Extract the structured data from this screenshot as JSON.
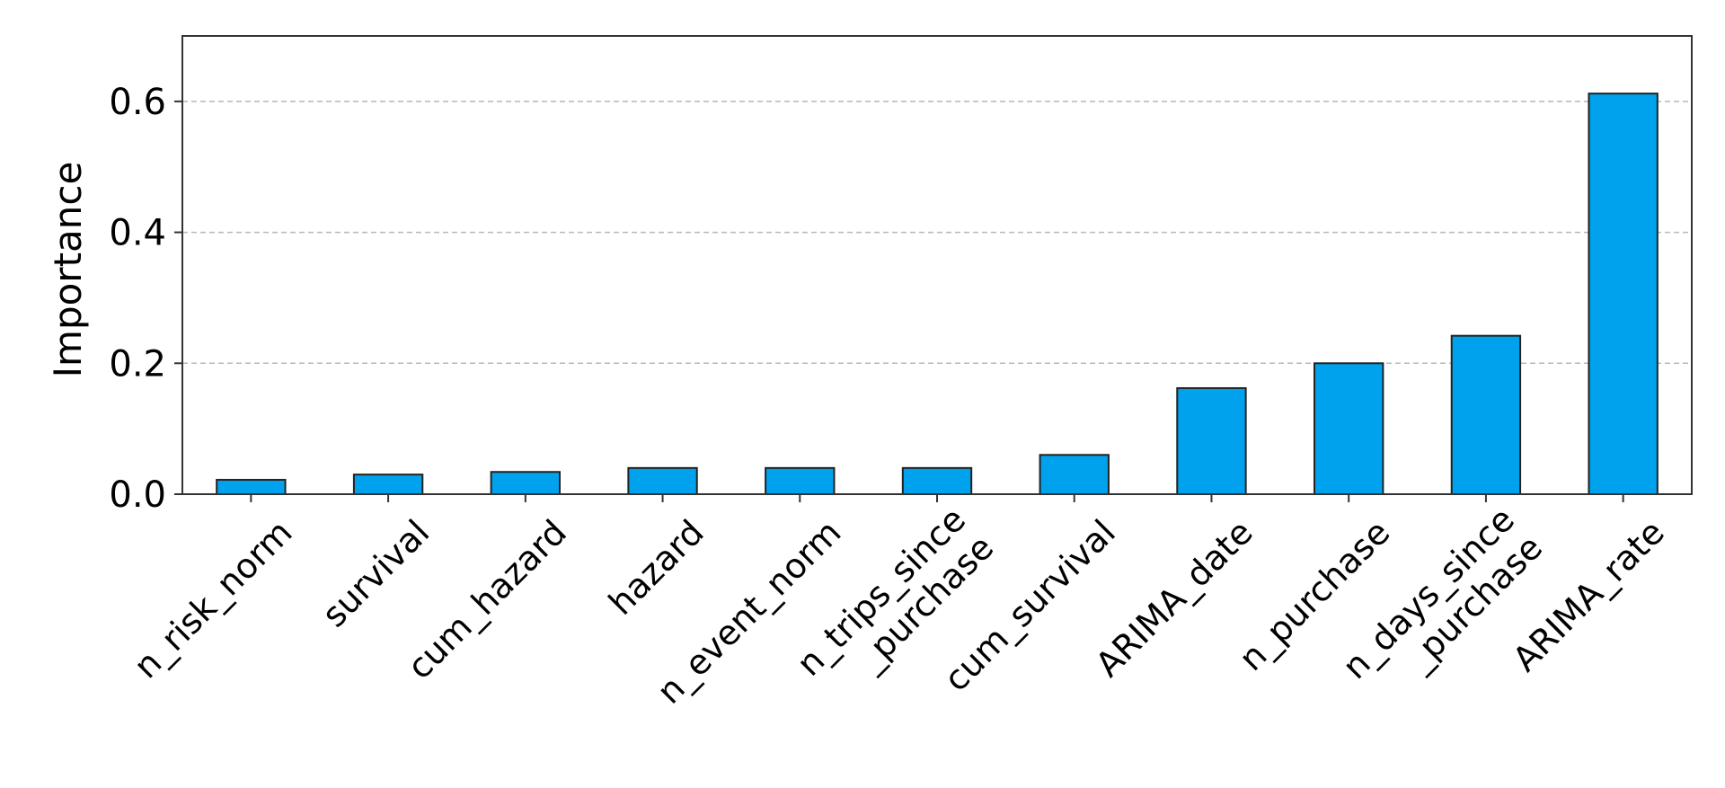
{
  "chart_data": {
    "type": "bar",
    "title": "",
    "xlabel": "",
    "ylabel": "Importance",
    "ylim": [
      0,
      0.7
    ],
    "yticks": [
      "0.0",
      "0.2",
      "0.4",
      "0.6"
    ],
    "ytick_values": [
      0,
      0.2,
      0.4,
      0.6
    ],
    "grid": "horizontal dashed",
    "bar_color": "#00a2ed",
    "categories": [
      [
        "n_risk_norm"
      ],
      [
        "survival"
      ],
      [
        "cum_hazard"
      ],
      [
        "hazard"
      ],
      [
        "n_event_norm"
      ],
      [
        "n_trips_since",
        "_purchase"
      ],
      [
        "cum_survival"
      ],
      [
        "ARIMA_date"
      ],
      [
        "n_purchase"
      ],
      [
        "n_days_since",
        "_purchase"
      ],
      [
        "ARIMA_rate"
      ]
    ],
    "values": [
      0.022,
      0.03,
      0.034,
      0.04,
      0.04,
      0.04,
      0.06,
      0.162,
      0.2,
      0.242,
      0.612
    ]
  }
}
